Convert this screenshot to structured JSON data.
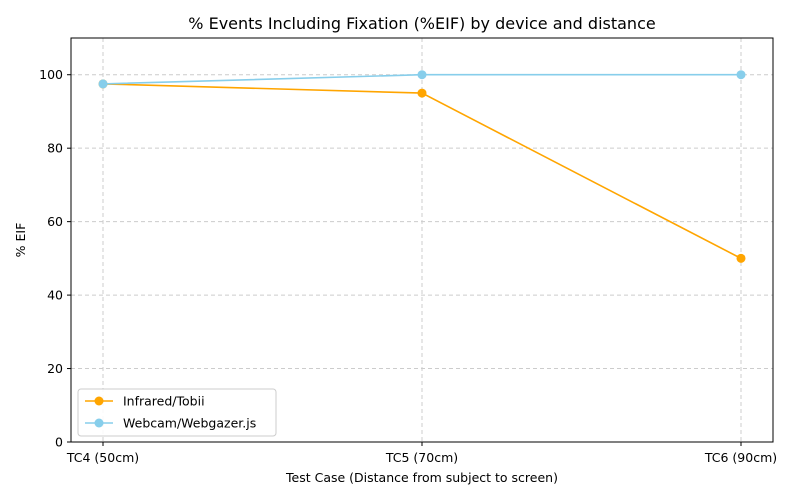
{
  "chart_data": {
    "type": "line",
    "title": "% Events Including Fixation (%EIF) by device and distance",
    "xlabel": "Test Case (Distance from subject to screen)",
    "ylabel": "% EIF",
    "categories": [
      "TC4 (50cm)",
      "TC5 (70cm)",
      "TC6 (90cm)"
    ],
    "ylim": [
      0,
      110
    ],
    "yticks": [
      0,
      20,
      40,
      60,
      80,
      100
    ],
    "grid": true,
    "legend_position": "lower-left",
    "series": [
      {
        "name": "Infrared/Tobii",
        "color": "#FFA500",
        "marker": "circle",
        "values": [
          97.5,
          95,
          50
        ]
      },
      {
        "name": "Webcam/Webgazer.js",
        "color": "#87CEEB",
        "marker": "circle",
        "values": [
          97.5,
          100,
          100
        ]
      }
    ]
  }
}
